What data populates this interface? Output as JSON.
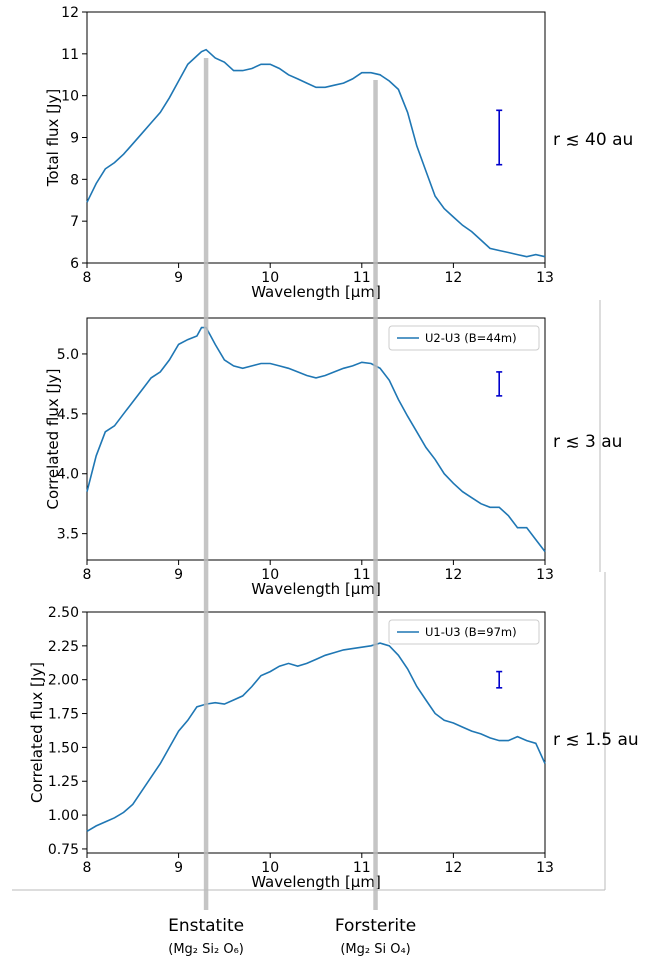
{
  "chart_data": [
    {
      "type": "line",
      "ylabel": "Total flux [Jy]",
      "xlabel": "Wavelength [μm]",
      "xlim": [
        8,
        13
      ],
      "ylim": [
        6,
        12
      ],
      "xticks": [
        "8",
        "9",
        "10",
        "11",
        "12",
        "13"
      ],
      "yticks": [
        "6",
        "7",
        "8",
        "9",
        "10",
        "11",
        "12"
      ],
      "region_label": "r ≲ 40 au",
      "legend": null,
      "error_bar": {
        "x": 12.5,
        "center": 9.0,
        "low": 8.35,
        "high": 9.65
      },
      "series": [
        {
          "color": "#1f77b4",
          "x": [
            8.0,
            8.1,
            8.2,
            8.3,
            8.4,
            8.5,
            8.6,
            8.7,
            8.8,
            8.9,
            9.0,
            9.1,
            9.2,
            9.25,
            9.3,
            9.35,
            9.4,
            9.5,
            9.6,
            9.7,
            9.8,
            9.9,
            10.0,
            10.1,
            10.2,
            10.3,
            10.4,
            10.5,
            10.6,
            10.7,
            10.8,
            10.9,
            11.0,
            11.1,
            11.2,
            11.3,
            11.4,
            11.5,
            11.6,
            11.7,
            11.8,
            11.9,
            12.0,
            12.1,
            12.2,
            12.3,
            12.4,
            12.5,
            12.6,
            12.7,
            12.8,
            12.9,
            13.0
          ],
          "y": [
            7.45,
            7.9,
            8.25,
            8.4,
            8.6,
            8.85,
            9.1,
            9.35,
            9.6,
            9.95,
            10.35,
            10.75,
            10.95,
            11.05,
            11.1,
            11.0,
            10.9,
            10.8,
            10.6,
            10.6,
            10.65,
            10.75,
            10.75,
            10.65,
            10.5,
            10.4,
            10.3,
            10.2,
            10.2,
            10.25,
            10.3,
            10.4,
            10.55,
            10.55,
            10.5,
            10.35,
            10.15,
            9.6,
            8.8,
            8.2,
            7.6,
            7.3,
            7.1,
            6.9,
            6.75,
            6.55,
            6.35,
            6.3,
            6.25,
            6.2,
            6.15,
            6.2,
            6.15
          ]
        }
      ]
    },
    {
      "type": "line",
      "ylabel": "Correlated flux [Jy]",
      "xlabel": "Wavelength [μm]",
      "xlim": [
        8,
        13
      ],
      "ylim": [
        3.28,
        5.3
      ],
      "xticks": [
        "8",
        "9",
        "10",
        "11",
        "12",
        "13"
      ],
      "yticks": [
        "3.5",
        "4.0",
        "4.5",
        "5.0"
      ],
      "region_label": "r ≲ 3 au",
      "legend": "top-right",
      "error_bar": {
        "x": 12.5,
        "center": 4.75,
        "low": 4.65,
        "high": 4.85
      },
      "series": [
        {
          "name": "U2-U3 (B=44m)",
          "color": "#1f77b4",
          "x": [
            8.0,
            8.1,
            8.2,
            8.3,
            8.4,
            8.5,
            8.6,
            8.7,
            8.8,
            8.9,
            9.0,
            9.1,
            9.2,
            9.25,
            9.3,
            9.35,
            9.4,
            9.5,
            9.6,
            9.7,
            9.8,
            9.9,
            10.0,
            10.1,
            10.2,
            10.3,
            10.4,
            10.5,
            10.6,
            10.7,
            10.8,
            10.9,
            11.0,
            11.1,
            11.2,
            11.3,
            11.4,
            11.5,
            11.6,
            11.7,
            11.8,
            11.9,
            12.0,
            12.1,
            12.2,
            12.3,
            12.4,
            12.5,
            12.6,
            12.7,
            12.8,
            12.9,
            13.0
          ],
          "y": [
            3.85,
            4.15,
            4.35,
            4.4,
            4.5,
            4.6,
            4.7,
            4.8,
            4.85,
            4.95,
            5.08,
            5.12,
            5.15,
            5.22,
            5.22,
            5.15,
            5.08,
            4.95,
            4.9,
            4.88,
            4.9,
            4.92,
            4.92,
            4.9,
            4.88,
            4.85,
            4.82,
            4.8,
            4.82,
            4.85,
            4.88,
            4.9,
            4.93,
            4.92,
            4.88,
            4.78,
            4.62,
            4.48,
            4.35,
            4.22,
            4.12,
            4.0,
            3.92,
            3.85,
            3.8,
            3.75,
            3.72,
            3.72,
            3.65,
            3.55,
            3.55,
            3.45,
            3.35
          ]
        }
      ]
    },
    {
      "type": "line",
      "ylabel": "Correlated flux [Jy]",
      "xlabel": "Wavelength [μm]",
      "xlim": [
        8,
        13
      ],
      "ylim": [
        0.72,
        2.5
      ],
      "xticks": [
        "8",
        "9",
        "10",
        "11",
        "12",
        "13"
      ],
      "yticks": [
        "0.75",
        "1.00",
        "1.25",
        "1.50",
        "1.75",
        "2.00",
        "2.25",
        "2.50"
      ],
      "region_label": "r ≲ 1.5 au",
      "legend": "top-right",
      "error_bar": {
        "x": 12.5,
        "center": 2.0,
        "low": 1.94,
        "high": 2.06
      },
      "series": [
        {
          "name": "U1-U3 (B=97m)",
          "color": "#1f77b4",
          "x": [
            8.0,
            8.1,
            8.2,
            8.3,
            8.4,
            8.5,
            8.6,
            8.7,
            8.8,
            8.9,
            9.0,
            9.1,
            9.2,
            9.3,
            9.4,
            9.5,
            9.6,
            9.7,
            9.8,
            9.9,
            10.0,
            10.1,
            10.2,
            10.3,
            10.4,
            10.5,
            10.6,
            10.7,
            10.8,
            10.9,
            11.0,
            11.1,
            11.2,
            11.3,
            11.4,
            11.5,
            11.6,
            11.7,
            11.8,
            11.9,
            12.0,
            12.1,
            12.2,
            12.3,
            12.4,
            12.5,
            12.6,
            12.7,
            12.8,
            12.9,
            13.0
          ],
          "y": [
            0.88,
            0.92,
            0.95,
            0.98,
            1.02,
            1.08,
            1.18,
            1.28,
            1.38,
            1.5,
            1.62,
            1.7,
            1.8,
            1.82,
            1.83,
            1.82,
            1.85,
            1.88,
            1.95,
            2.03,
            2.06,
            2.1,
            2.12,
            2.1,
            2.12,
            2.15,
            2.18,
            2.2,
            2.22,
            2.23,
            2.24,
            2.25,
            2.27,
            2.25,
            2.18,
            2.08,
            1.95,
            1.85,
            1.75,
            1.7,
            1.68,
            1.65,
            1.62,
            1.6,
            1.57,
            1.55,
            1.55,
            1.58,
            1.55,
            1.53,
            1.38
          ]
        }
      ]
    }
  ],
  "features": [
    {
      "name": "Enstatite",
      "formula": "(Mg₂ Si₂ O₆)",
      "x": 9.3
    },
    {
      "name": "Forsterite",
      "formula": "(Mg₂ Si O₄)",
      "x": 11.15
    }
  ],
  "colors": {
    "line": "#1f77b4",
    "error_bar": "#0000cc",
    "feature_band": "#bbbbbb"
  }
}
